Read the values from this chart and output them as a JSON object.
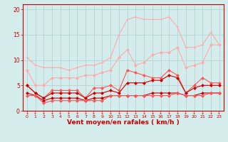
{
  "x": [
    0,
    1,
    2,
    3,
    4,
    5,
    6,
    7,
    8,
    9,
    10,
    11,
    12,
    13,
    14,
    15,
    16,
    17,
    18,
    19,
    20,
    21,
    22,
    23
  ],
  "series": [
    {
      "name": "max_light",
      "color": "#ffaaaa",
      "lw": 0.8,
      "marker": "+",
      "ms": 3,
      "y": [
        10.5,
        9.0,
        8.5,
        8.5,
        8.5,
        8.0,
        8.5,
        9.0,
        9.0,
        9.5,
        10.5,
        15.0,
        18.0,
        18.5,
        18.0,
        18.0,
        18.0,
        18.5,
        16.5,
        12.5,
        12.5,
        13.0,
        15.5,
        13.0
      ]
    },
    {
      "name": "avg_light",
      "color": "#ffaaaa",
      "lw": 0.8,
      "marker": "D",
      "ms": 2,
      "y": [
        8.0,
        5.0,
        5.0,
        6.5,
        6.5,
        6.5,
        6.5,
        7.0,
        7.0,
        7.5,
        8.0,
        10.5,
        12.0,
        9.0,
        9.5,
        11.0,
        11.5,
        11.5,
        12.5,
        8.5,
        9.0,
        9.5,
        13.0,
        13.0
      ]
    },
    {
      "name": "max_dark",
      "color": "#ff5555",
      "lw": 0.8,
      "marker": "D",
      "ms": 2,
      "y": [
        5.0,
        3.5,
        2.5,
        4.0,
        4.0,
        4.0,
        4.0,
        2.5,
        4.5,
        4.5,
        5.0,
        4.0,
        8.0,
        7.5,
        7.0,
        6.5,
        6.5,
        8.0,
        7.0,
        3.5,
        5.0,
        6.5,
        5.5,
        5.5
      ]
    },
    {
      "name": "avg_dark",
      "color": "#cc0000",
      "lw": 0.8,
      "marker": "D",
      "ms": 2,
      "y": [
        5.0,
        3.5,
        2.5,
        3.5,
        3.5,
        3.5,
        3.5,
        2.5,
        3.5,
        3.5,
        4.0,
        3.5,
        5.5,
        5.5,
        5.5,
        6.0,
        6.0,
        7.0,
        6.5,
        3.5,
        4.5,
        5.0,
        5.0,
        5.0
      ]
    },
    {
      "name": "min_dark",
      "color": "#cc0000",
      "lw": 0.8,
      "marker": "D",
      "ms": 2,
      "y": [
        3.5,
        3.0,
        2.0,
        2.5,
        2.5,
        2.5,
        2.5,
        2.0,
        2.5,
        2.5,
        3.0,
        3.0,
        3.0,
        3.0,
        3.0,
        3.5,
        3.5,
        3.5,
        3.5,
        3.0,
        3.0,
        3.5,
        3.5,
        3.5
      ]
    },
    {
      "name": "min_light",
      "color": "#ff5555",
      "lw": 0.8,
      "marker": "D",
      "ms": 2,
      "y": [
        3.0,
        3.0,
        1.5,
        2.0,
        2.0,
        2.0,
        2.0,
        2.0,
        2.0,
        2.0,
        3.0,
        3.0,
        3.0,
        3.0,
        3.0,
        3.0,
        3.0,
        3.0,
        3.5,
        3.0,
        3.0,
        3.0,
        3.5,
        3.5
      ]
    }
  ],
  "xlabel": "Vent moyen/en rafales ( km/h )",
  "xlabel_color": "#cc0000",
  "bg_color": "#d4ecec",
  "grid_color": "#b8d8d8",
  "axis_color": "#cc0000",
  "tick_color": "#cc0000",
  "ylim": [
    0,
    21
  ],
  "yticks": [
    0,
    5,
    10,
    15,
    20
  ],
  "xticks": [
    0,
    1,
    2,
    3,
    4,
    5,
    6,
    7,
    8,
    9,
    10,
    11,
    12,
    13,
    14,
    15,
    16,
    17,
    18,
    19,
    20,
    21,
    22,
    23
  ],
  "arrow_color": "#cc0000"
}
